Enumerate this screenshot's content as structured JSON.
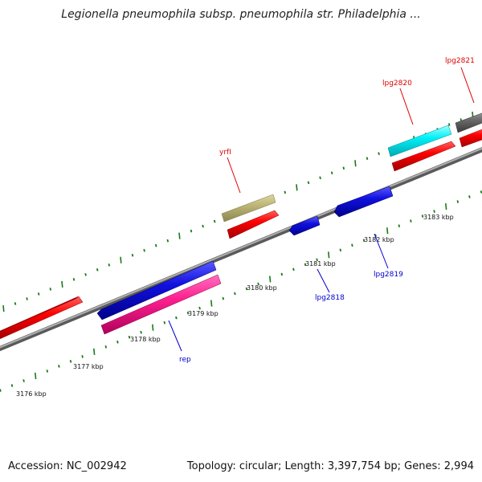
{
  "title": "Legionella pneumophila subsp. pneumophila str. Philadelphia ...",
  "footer": {
    "accession": "Accession: NC_002942",
    "summary": "Topology: circular; Length: 3,397,754 bp; Genes: 2,994"
  },
  "colors": {
    "backbone": "#8a8a8a",
    "tick_major": "#1a7a1a",
    "forward_label": "#dd0000",
    "reverse_label": "#0000cc",
    "red": "#e00000",
    "blue": "#1a1ad0",
    "cyan": "#00e0e8",
    "olive": "#b8b070",
    "pink": "#e0208a",
    "grey": "#606060"
  },
  "scale_labels": [
    "3176 kbp",
    "3177 kbp",
    "3178 kbp",
    "3179 kbp",
    "3180 kbp",
    "3181 kbp",
    "3182 kbp",
    "3183 kbp"
  ],
  "gene_labels": {
    "yrfI": "yrfI",
    "lpg2820": "lpg2820",
    "lpg2821": "lpg2821",
    "lpg2818": "lpg2818",
    "lpg2819": "lpg2819",
    "rep": "rep"
  }
}
